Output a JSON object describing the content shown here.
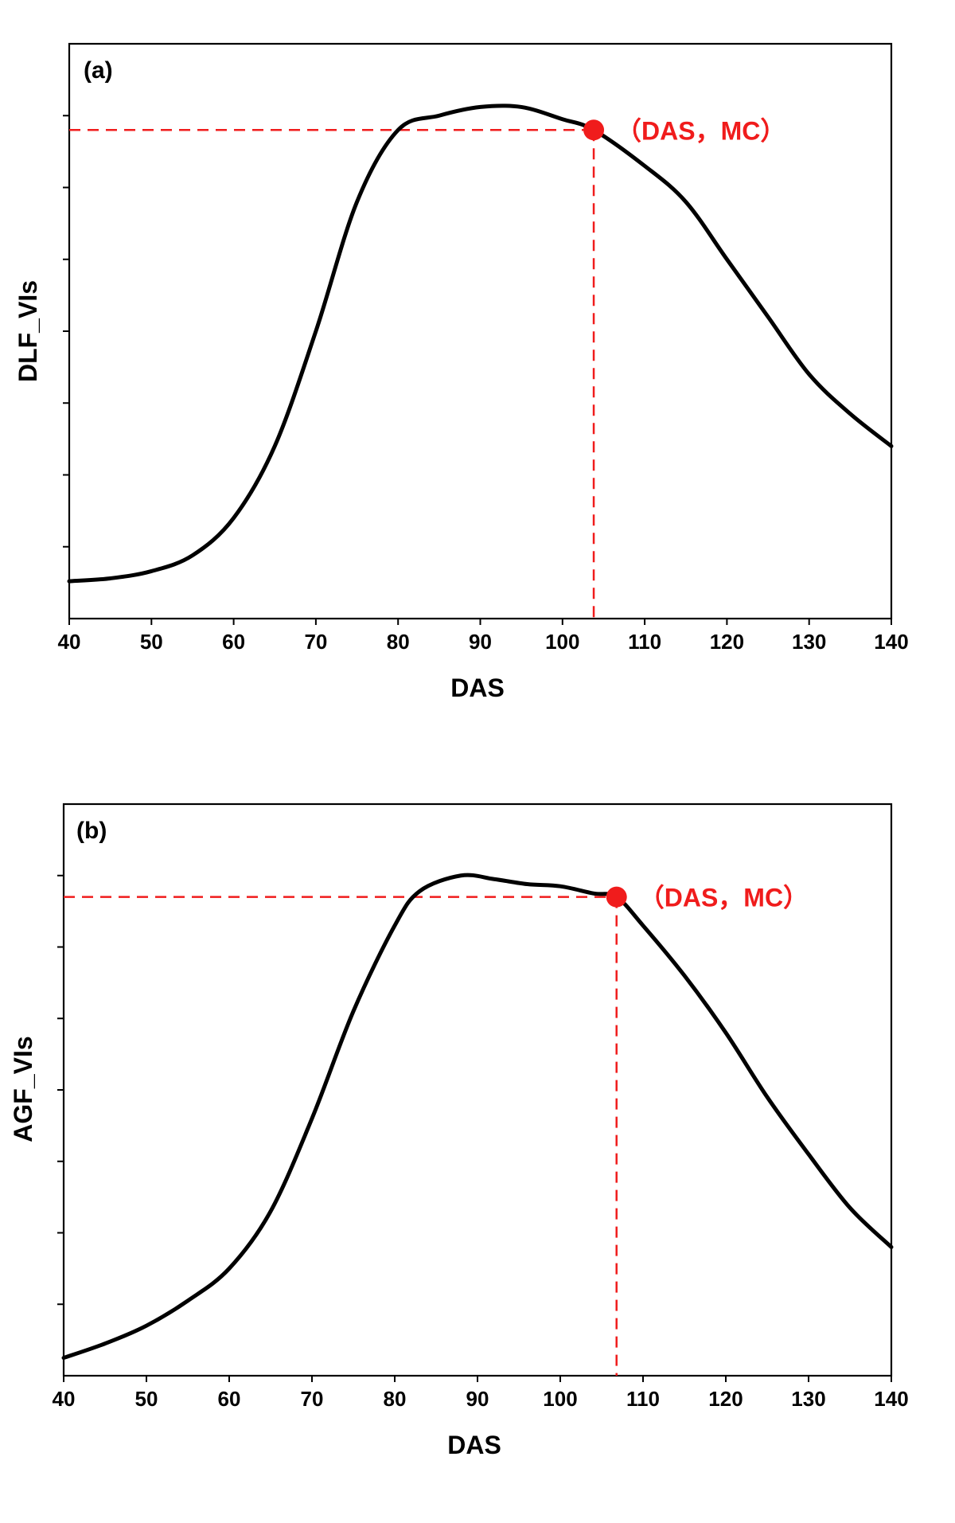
{
  "chart_data": [
    {
      "type": "line",
      "panel_label": "(a)",
      "xlabel": "DAS",
      "ylabel": "DLF_VIs",
      "xlim": [
        40,
        140
      ],
      "ylim": [
        0,
        8
      ],
      "x_ticks": [
        40,
        50,
        60,
        70,
        80,
        90,
        100,
        110,
        120,
        130,
        140
      ],
      "y_ticks": [
        1,
        2,
        3,
        4,
        5,
        6,
        7
      ],
      "y_tick_labels_shown": false,
      "series": [
        {
          "name": "DLF_VIs",
          "x": [
            40,
            45,
            50,
            55,
            60,
            65,
            70,
            75,
            80,
            85,
            90,
            95,
            100,
            103.8,
            110,
            115,
            120,
            125,
            130,
            135,
            140
          ],
          "y": [
            0.52,
            0.56,
            0.66,
            0.88,
            1.4,
            2.4,
            4.0,
            5.8,
            6.8,
            7.0,
            7.12,
            7.12,
            6.95,
            6.8,
            6.3,
            5.8,
            5.0,
            4.2,
            3.4,
            2.85,
            2.4
          ]
        }
      ],
      "marker": {
        "x": 103.8,
        "y": 6.8,
        "label": "（DAS，MC）"
      }
    },
    {
      "type": "line",
      "panel_label": "(b)",
      "xlabel": "DAS",
      "ylabel": "AGF_VIs",
      "xlim": [
        40,
        140
      ],
      "ylim": [
        0,
        8
      ],
      "x_ticks": [
        40,
        50,
        60,
        70,
        80,
        90,
        100,
        110,
        120,
        130,
        140
      ],
      "y_ticks": [
        1,
        2,
        3,
        4,
        5,
        6,
        7
      ],
      "y_tick_labels_shown": false,
      "series": [
        {
          "name": "AGF_VIs",
          "x": [
            40,
            45,
            50,
            55,
            60,
            65,
            70,
            75,
            80,
            83,
            88,
            92,
            96,
            100,
            104,
            106.8,
            110,
            115,
            120,
            125,
            130,
            135,
            140
          ],
          "y": [
            0.25,
            0.45,
            0.7,
            1.05,
            1.5,
            2.3,
            3.6,
            5.1,
            6.3,
            6.78,
            7.0,
            6.95,
            6.88,
            6.85,
            6.75,
            6.7,
            6.3,
            5.6,
            4.8,
            3.9,
            3.1,
            2.35,
            1.8
          ]
        }
      ],
      "marker": {
        "x": 106.8,
        "y": 6.7,
        "label": "（DAS，MC）"
      }
    }
  ]
}
